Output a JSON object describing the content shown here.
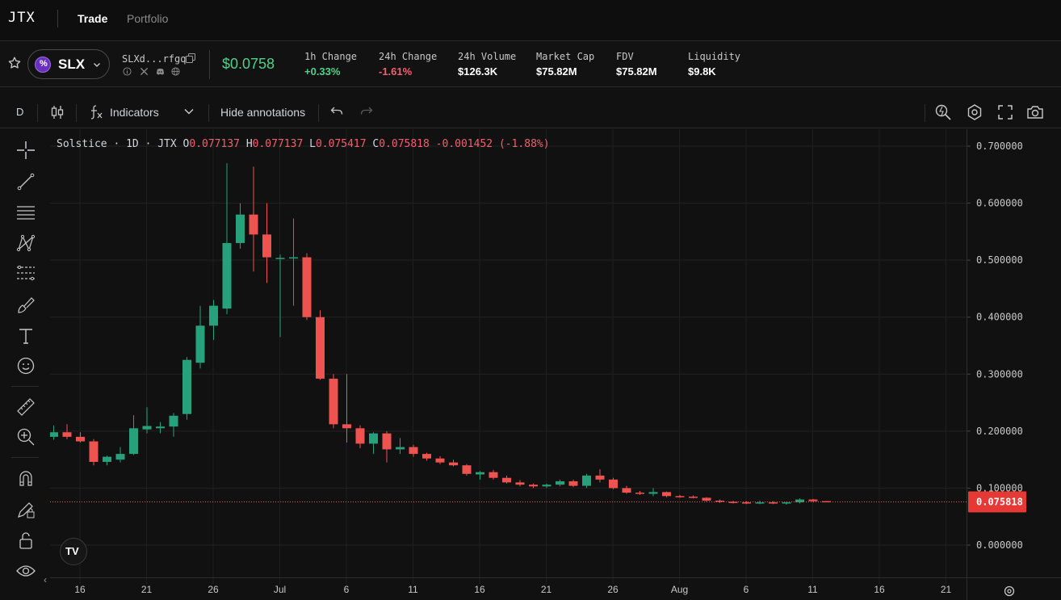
{
  "nav": {
    "logo": "JTX",
    "links": [
      {
        "label": "Trade"
      },
      {
        "label": "Portfolio"
      }
    ]
  },
  "token": {
    "symbol": "SLX",
    "address_short": "SLXd...rfgq",
    "price": "$0.0758",
    "stats": [
      {
        "label": "1h Change",
        "value": "+0.33%",
        "tone": "up"
      },
      {
        "label": "24h Change",
        "value": "-1.61%",
        "tone": "down"
      },
      {
        "label": "24h Volume",
        "value": "$126.3K",
        "tone": "neutral"
      },
      {
        "label": "Market Cap",
        "value": "$75.82M",
        "tone": "neutral"
      },
      {
        "label": "FDV",
        "value": "$75.82M",
        "tone": "neutral"
      },
      {
        "label": "Liquidity",
        "value": "$9.8K",
        "tone": "neutral"
      }
    ],
    "socials": [
      "info-icon",
      "x-icon",
      "discord-icon",
      "globe-icon"
    ]
  },
  "toolbar": {
    "interval": "D",
    "indicators_label": "Indicators",
    "hide_annotations_label": "Hide annotations"
  },
  "left_tools": [
    "crosshair-icon",
    "trendline-icon",
    "horizontal-lines-icon",
    "pattern-icon",
    "fib-icon",
    "brush-icon",
    "text-icon",
    "emoji-icon",
    "ruler-icon",
    "zoom-in-icon",
    "magnet-icon",
    "lock-drawing-icon",
    "lock-icon",
    "eye-icon"
  ],
  "legend": {
    "name": "Solstice · 1D · JTX",
    "o_label": "O",
    "o_value": "0.077137",
    "h_label": "H",
    "h_value": "0.077137",
    "l_label": "L",
    "l_value": "0.075417",
    "c_label": "C",
    "c_value": "0.075818",
    "change": "-0.001452 (-1.88%)"
  },
  "badge": "TV",
  "colors": {
    "up": "#26a17b",
    "down": "#ef5350",
    "price_text_up": "#4fd18b",
    "price_text_down": "#f0616d",
    "last_price_bg": "#e53935"
  },
  "chart_data": {
    "type": "candlestick",
    "ylim": [
      0,
      0.7
    ],
    "y_ticks": [
      "0.700000",
      "0.600000",
      "0.500000",
      "0.400000",
      "0.300000",
      "0.200000",
      "0.100000",
      "0.000000"
    ],
    "x_ticks": [
      "16",
      "21",
      "26",
      "Jul",
      "6",
      "11",
      "16",
      "21",
      "26",
      "Aug",
      "6",
      "11",
      "16",
      "21"
    ],
    "last_price": "0.075818",
    "candles": [
      {
        "o": 0.19,
        "h": 0.21,
        "l": 0.185,
        "c": 0.198
      },
      {
        "o": 0.198,
        "h": 0.212,
        "l": 0.186,
        "c": 0.19
      },
      {
        "o": 0.19,
        "h": 0.198,
        "l": 0.18,
        "c": 0.182
      },
      {
        "o": 0.182,
        "h": 0.186,
        "l": 0.14,
        "c": 0.146
      },
      {
        "o": 0.146,
        "h": 0.157,
        "l": 0.14,
        "c": 0.155
      },
      {
        "o": 0.15,
        "h": 0.172,
        "l": 0.145,
        "c": 0.16
      },
      {
        "o": 0.16,
        "h": 0.228,
        "l": 0.158,
        "c": 0.205
      },
      {
        "o": 0.203,
        "h": 0.242,
        "l": 0.196,
        "c": 0.209
      },
      {
        "o": 0.205,
        "h": 0.216,
        "l": 0.196,
        "c": 0.208
      },
      {
        "o": 0.208,
        "h": 0.232,
        "l": 0.19,
        "c": 0.227
      },
      {
        "o": 0.23,
        "h": 0.33,
        "l": 0.22,
        "c": 0.325
      },
      {
        "o": 0.32,
        "h": 0.42,
        "l": 0.31,
        "c": 0.385
      },
      {
        "o": 0.385,
        "h": 0.43,
        "l": 0.36,
        "c": 0.42
      },
      {
        "o": 0.415,
        "h": 0.67,
        "l": 0.405,
        "c": 0.53
      },
      {
        "o": 0.53,
        "h": 0.6,
        "l": 0.52,
        "c": 0.58
      },
      {
        "o": 0.58,
        "h": 0.664,
        "l": 0.48,
        "c": 0.545
      },
      {
        "o": 0.545,
        "h": 0.6,
        "l": 0.46,
        "c": 0.505
      },
      {
        "o": 0.502,
        "h": 0.51,
        "l": 0.365,
        "c": 0.504
      },
      {
        "o": 0.503,
        "h": 0.573,
        "l": 0.42,
        "c": 0.505
      },
      {
        "o": 0.505,
        "h": 0.512,
        "l": 0.395,
        "c": 0.4
      },
      {
        "o": 0.4,
        "h": 0.412,
        "l": 0.29,
        "c": 0.292
      },
      {
        "o": 0.292,
        "h": 0.3,
        "l": 0.205,
        "c": 0.212
      },
      {
        "o": 0.212,
        "h": 0.3,
        "l": 0.18,
        "c": 0.205
      },
      {
        "o": 0.205,
        "h": 0.21,
        "l": 0.17,
        "c": 0.178
      },
      {
        "o": 0.178,
        "h": 0.198,
        "l": 0.16,
        "c": 0.196
      },
      {
        "o": 0.196,
        "h": 0.2,
        "l": 0.145,
        "c": 0.168
      },
      {
        "o": 0.168,
        "h": 0.188,
        "l": 0.16,
        "c": 0.172
      },
      {
        "o": 0.172,
        "h": 0.176,
        "l": 0.155,
        "c": 0.16
      },
      {
        "o": 0.16,
        "h": 0.162,
        "l": 0.148,
        "c": 0.152
      },
      {
        "o": 0.152,
        "h": 0.156,
        "l": 0.142,
        "c": 0.145
      },
      {
        "o": 0.145,
        "h": 0.15,
        "l": 0.138,
        "c": 0.14
      },
      {
        "o": 0.14,
        "h": 0.142,
        "l": 0.122,
        "c": 0.125
      },
      {
        "o": 0.124,
        "h": 0.13,
        "l": 0.115,
        "c": 0.128
      },
      {
        "o": 0.128,
        "h": 0.132,
        "l": 0.115,
        "c": 0.118
      },
      {
        "o": 0.118,
        "h": 0.122,
        "l": 0.108,
        "c": 0.11
      },
      {
        "o": 0.11,
        "h": 0.114,
        "l": 0.103,
        "c": 0.106
      },
      {
        "o": 0.106,
        "h": 0.108,
        "l": 0.1,
        "c": 0.103
      },
      {
        "o": 0.103,
        "h": 0.108,
        "l": 0.1,
        "c": 0.106
      },
      {
        "o": 0.106,
        "h": 0.115,
        "l": 0.103,
        "c": 0.112
      },
      {
        "o": 0.112,
        "h": 0.115,
        "l": 0.102,
        "c": 0.104
      },
      {
        "o": 0.104,
        "h": 0.125,
        "l": 0.1,
        "c": 0.122
      },
      {
        "o": 0.122,
        "h": 0.133,
        "l": 0.11,
        "c": 0.115
      },
      {
        "o": 0.115,
        "h": 0.118,
        "l": 0.098,
        "c": 0.1
      },
      {
        "o": 0.1,
        "h": 0.104,
        "l": 0.09,
        "c": 0.092
      },
      {
        "o": 0.092,
        "h": 0.095,
        "l": 0.088,
        "c": 0.09
      },
      {
        "o": 0.09,
        "h": 0.1,
        "l": 0.086,
        "c": 0.093
      },
      {
        "o": 0.093,
        "h": 0.094,
        "l": 0.084,
        "c": 0.086
      },
      {
        "o": 0.086,
        "h": 0.088,
        "l": 0.083,
        "c": 0.085
      },
      {
        "o": 0.085,
        "h": 0.087,
        "l": 0.082,
        "c": 0.083
      },
      {
        "o": 0.083,
        "h": 0.084,
        "l": 0.076,
        "c": 0.078
      },
      {
        "o": 0.078,
        "h": 0.08,
        "l": 0.074,
        "c": 0.076
      },
      {
        "o": 0.076,
        "h": 0.078,
        "l": 0.073,
        "c": 0.075
      },
      {
        "o": 0.075,
        "h": 0.077,
        "l": 0.072,
        "c": 0.074
      },
      {
        "o": 0.074,
        "h": 0.078,
        "l": 0.072,
        "c": 0.075
      },
      {
        "o": 0.075,
        "h": 0.077,
        "l": 0.072,
        "c": 0.073
      },
      {
        "o": 0.073,
        "h": 0.076,
        "l": 0.071,
        "c": 0.075
      },
      {
        "o": 0.075,
        "h": 0.082,
        "l": 0.073,
        "c": 0.08
      },
      {
        "o": 0.08,
        "h": 0.081,
        "l": 0.075,
        "c": 0.077
      },
      {
        "o": 0.077137,
        "h": 0.077137,
        "l": 0.075417,
        "c": 0.075818
      }
    ]
  }
}
